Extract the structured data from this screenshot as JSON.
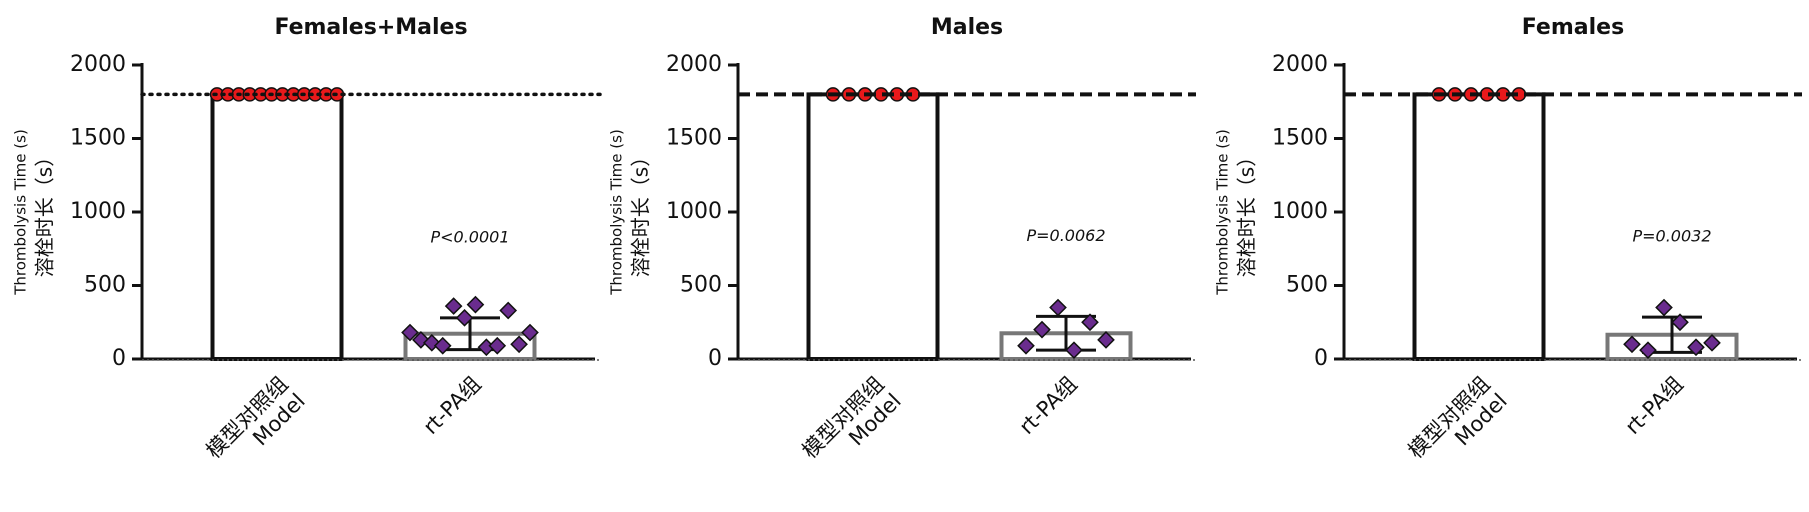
{
  "chart_data": [
    {
      "type": "bar",
      "title": "Females+Males",
      "ylabel": "Thrombolysis Time (s)",
      "ylabel_cn": "溶栓时长（s）",
      "categories": [
        "模型对照组",
        "rt-PA组"
      ],
      "category_english": [
        "Model",
        null
      ],
      "values": [
        1800,
        172
      ],
      "errors": [
        0,
        108
      ],
      "points": [
        [
          1800,
          1800,
          1800,
          1800,
          1800,
          1800,
          1800,
          1800,
          1800,
          1800,
          1800,
          1800
        ],
        [
          180,
          130,
          110,
          90,
          360,
          280,
          370,
          80,
          90,
          330,
          100,
          180
        ]
      ],
      "bar_colors": [
        "#111111",
        "#777777"
      ],
      "point_colors": [
        "#e8191b",
        "#6a2c8e"
      ],
      "point_shapes": [
        "circle",
        "diamond"
      ],
      "reference_line": 1800,
      "annotation": "P<0.0001",
      "ylim": [
        0,
        2000
      ],
      "yticks": [
        0,
        500,
        1000,
        1500,
        2000
      ]
    },
    {
      "type": "bar",
      "title": "Males",
      "ylabel": "Thrombolysis Time (s)",
      "ylabel_cn": "溶栓时长（s）",
      "categories": [
        "模型对照组",
        "rt-PA组"
      ],
      "category_english": [
        "Model",
        null
      ],
      "values": [
        1800,
        175
      ],
      "errors": [
        0,
        115
      ],
      "points": [
        [
          1800,
          1800,
          1800,
          1800,
          1800,
          1800
        ],
        [
          90,
          200,
          350,
          60,
          250,
          130
        ]
      ],
      "bar_colors": [
        "#111111",
        "#777777"
      ],
      "point_colors": [
        "#e8191b",
        "#6a2c8e"
      ],
      "point_shapes": [
        "circle",
        "diamond"
      ],
      "reference_line": 1800,
      "annotation": "P=0.0062",
      "ylim": [
        0,
        2000
      ],
      "yticks": [
        0,
        500,
        1000,
        1500,
        2000
      ]
    },
    {
      "type": "bar",
      "title": "Females",
      "ylabel": "Thrombolysis Time (s)",
      "ylabel_cn": "溶栓时长（s）",
      "categories": [
        "模型对照组",
        "rt-PA组"
      ],
      "category_english": [
        "Model",
        null
      ],
      "values": [
        1800,
        165
      ],
      "errors": [
        0,
        120
      ],
      "points": [
        [
          1800,
          1800,
          1800,
          1800,
          1800,
          1800
        ],
        [
          100,
          60,
          350,
          250,
          80,
          110
        ]
      ],
      "bar_colors": [
        "#111111",
        "#777777"
      ],
      "point_colors": [
        "#e8191b",
        "#6a2c8e"
      ],
      "point_shapes": [
        "circle",
        "diamond"
      ],
      "reference_line": 1800,
      "annotation": "P=0.0032",
      "ylim": [
        0,
        2000
      ],
      "yticks": [
        0,
        500,
        1000,
        1500,
        2000
      ]
    }
  ]
}
